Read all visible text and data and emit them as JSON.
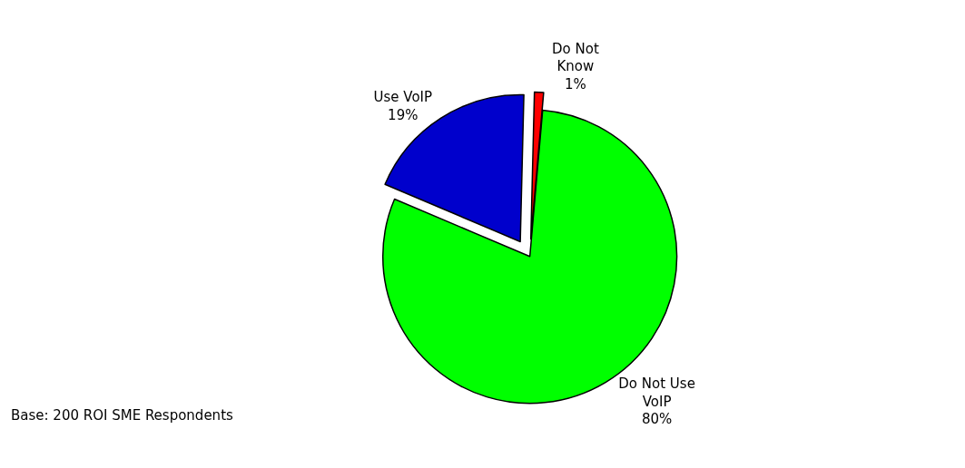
{
  "chart_data": {
    "type": "pie",
    "categories": [
      "Do Not Use VoIP",
      "Use VoIP",
      "Do Not Know"
    ],
    "values": [
      80,
      19,
      1
    ],
    "value_labels": [
      "80%",
      "19%",
      "1%"
    ],
    "colors": [
      "#00ff00",
      "#0000cc",
      "#ff0000"
    ],
    "legend": false,
    "annotations": [
      "Base: 200 ROI SME Respondents"
    ]
  }
}
